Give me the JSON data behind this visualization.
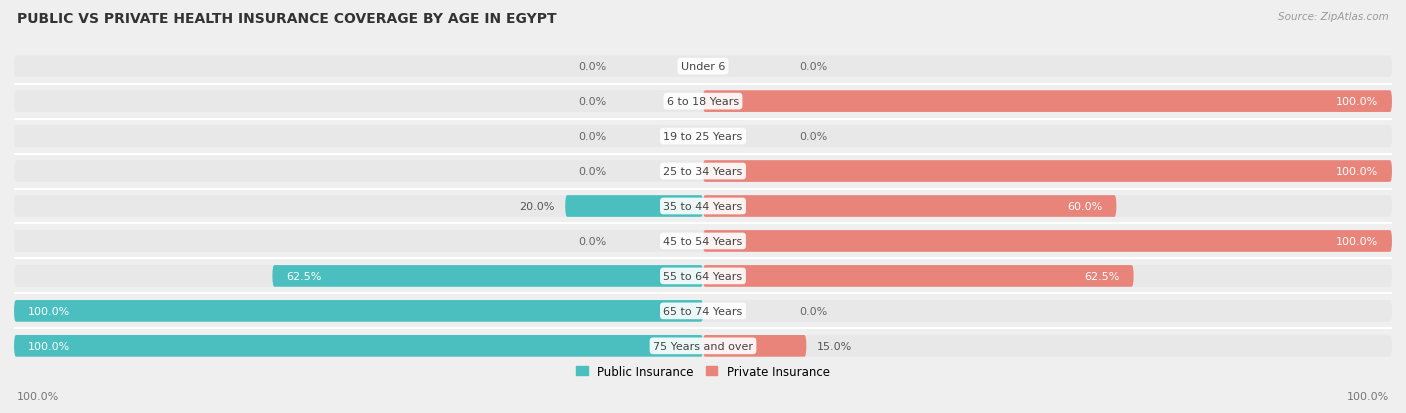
{
  "title": "PUBLIC VS PRIVATE HEALTH INSURANCE COVERAGE BY AGE IN EGYPT",
  "source": "Source: ZipAtlas.com",
  "categories": [
    "Under 6",
    "6 to 18 Years",
    "19 to 25 Years",
    "25 to 34 Years",
    "35 to 44 Years",
    "45 to 54 Years",
    "55 to 64 Years",
    "65 to 74 Years",
    "75 Years and over"
  ],
  "public_values": [
    0.0,
    0.0,
    0.0,
    0.0,
    20.0,
    0.0,
    62.5,
    100.0,
    100.0
  ],
  "private_values": [
    0.0,
    100.0,
    0.0,
    100.0,
    60.0,
    100.0,
    62.5,
    0.0,
    15.0
  ],
  "public_color": "#4bbfbf",
  "private_color": "#e8847a",
  "public_label": "Public Insurance",
  "private_label": "Private Insurance",
  "bg_color": "#efefef",
  "bar_bg_color": "#e2e2e2",
  "row_bg_color": "#e8e8e8",
  "max_value": 100.0,
  "title_fontsize": 10,
  "label_fontsize": 8,
  "bar_height": 0.62,
  "axis_label_left": "100.0%",
  "axis_label_right": "100.0%"
}
